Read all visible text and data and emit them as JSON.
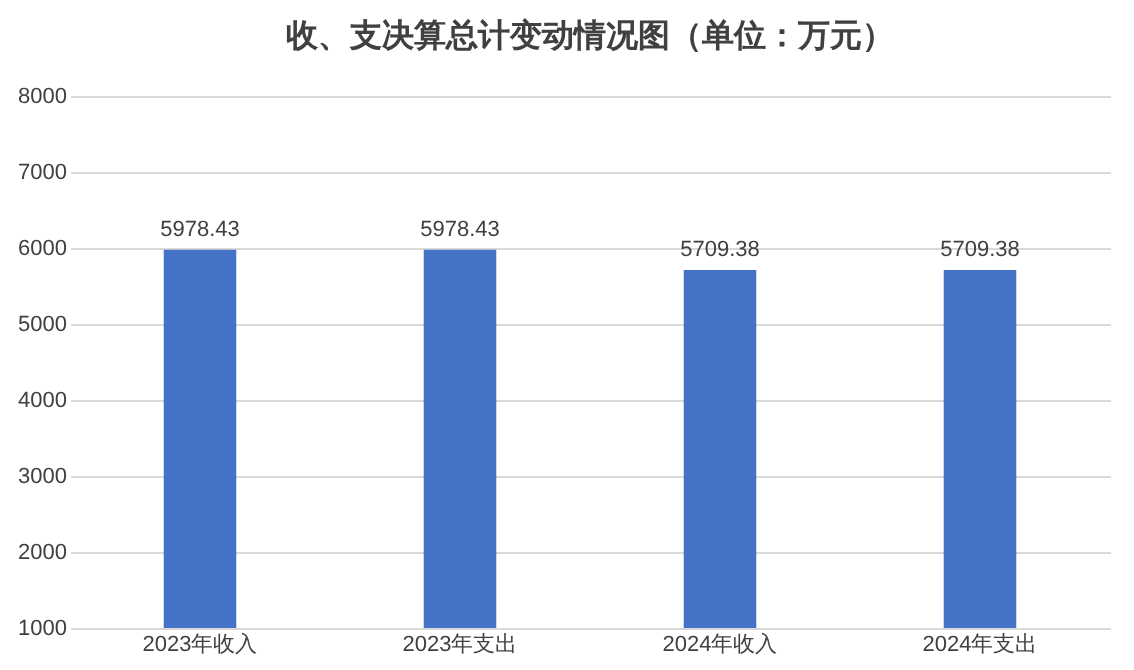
{
  "chart_data": {
    "type": "bar",
    "title": "收、支决算总计变动情况图（单位：万元）",
    "categories": [
      "2023年收入",
      "2023年支出",
      "2024年收入",
      "2024年支出"
    ],
    "values": [
      5978.43,
      5978.43,
      5709.38,
      5709.38
    ],
    "color": "#4472c4",
    "ylim": [
      1000,
      8000
    ],
    "yticks": [
      1000,
      2000,
      3000,
      4000,
      5000,
      6000,
      7000,
      8000
    ],
    "grid": true,
    "data_labels": true
  }
}
